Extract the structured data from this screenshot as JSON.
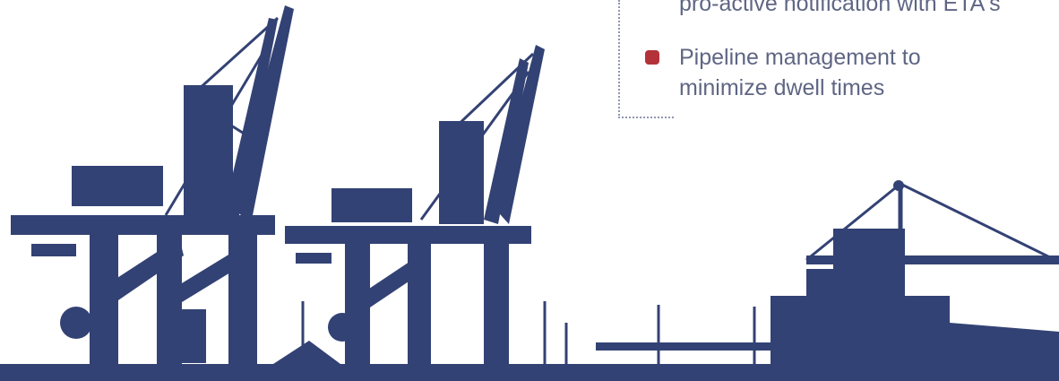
{
  "colors": {
    "silhouette": "#334274",
    "bullet": "#b3323a",
    "text": "#5f6684",
    "dotted_line": "#8f96b0"
  },
  "callout": {
    "items": [
      {
        "lines": [
          "pro-active notification with ETA's"
        ]
      },
      {
        "lines": [
          "Pipeline management to",
          "minimize dwell times"
        ]
      }
    ]
  }
}
